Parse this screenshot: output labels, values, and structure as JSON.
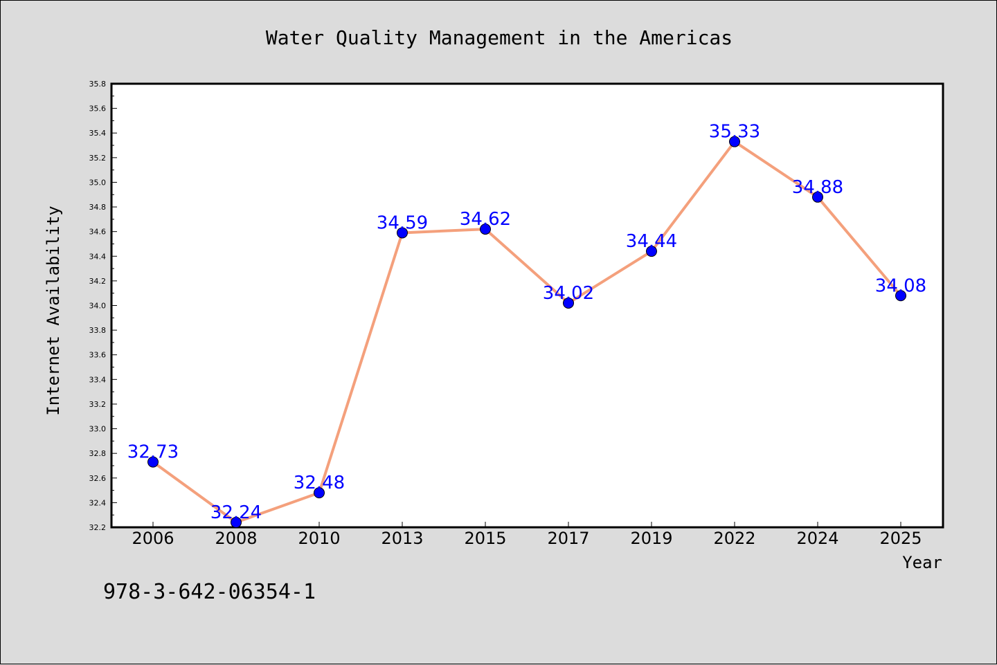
{
  "chart_data": {
    "type": "line",
    "title": "Water Quality Management in the Americas",
    "xlabel": "Year",
    "ylabel": "Internet Availability",
    "categories": [
      "2006",
      "2008",
      "2010",
      "2013",
      "2015",
      "2017",
      "2019",
      "2022",
      "2024",
      "2025"
    ],
    "series": [
      {
        "values": [
          32.73,
          32.24,
          32.48,
          34.59,
          34.62,
          34.02,
          34.44,
          35.33,
          34.88,
          34.08
        ],
        "data_labels": [
          "32.73",
          "32.24",
          "32.48",
          "34.59",
          "34.62",
          "34.02",
          "34.44",
          "35.33",
          "34.88",
          "34.08"
        ],
        "line_color": "#f4a07c",
        "marker_color": "#0000ff"
      }
    ],
    "ylim": [
      32.2,
      35.8
    ],
    "yticks": [
      "32.2",
      "32.4",
      "32.6",
      "32.8",
      "33.0",
      "33.2",
      "33.4",
      "33.6",
      "33.8",
      "34.0",
      "34.2",
      "34.4",
      "34.6",
      "34.8",
      "35.0",
      "35.2",
      "35.4",
      "35.6",
      "35.8"
    ],
    "grid": false,
    "legend": "none"
  },
  "annotation": "978-3-642-06354-1",
  "colors": {
    "background": "#dcdcdc",
    "plot_background": "#ffffff",
    "line": "#f4a07c",
    "marker": "#0000ff",
    "data_label": "#0000ff"
  }
}
